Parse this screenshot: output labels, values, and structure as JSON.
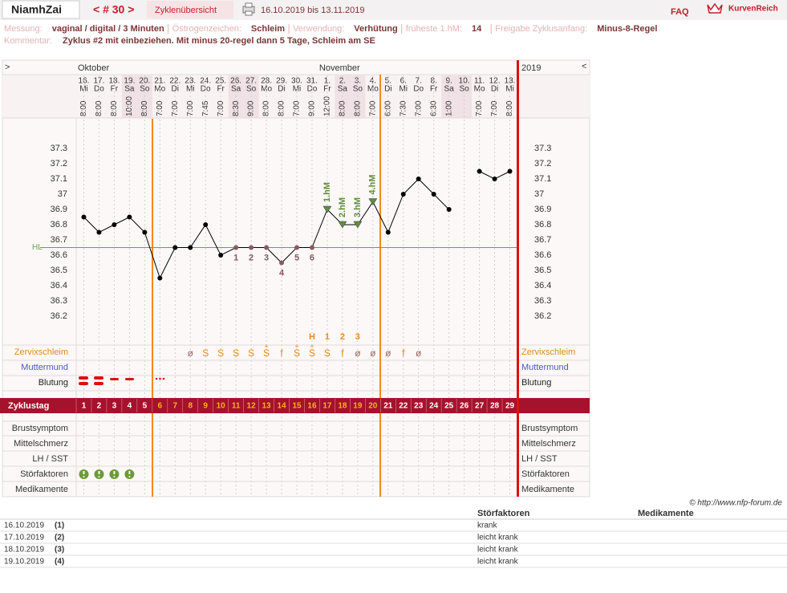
{
  "header": {
    "user": "NiamhZai",
    "cycle_nav": "< # 30 >",
    "overview": "Zyklenübersicht",
    "period": "16.10.2019 bis 13.11.2019",
    "faq": "FAQ",
    "brand": "KurvenReich"
  },
  "info": {
    "fields": [
      {
        "label": "Messung:",
        "value": "vaginal / digital / 3 Minuten"
      },
      {
        "label": "Östrogenzeichen:",
        "value": "Schleim"
      },
      {
        "label": "Verwendung:",
        "value": "Verhütung"
      },
      {
        "label": "früheste 1.hM:",
        "value": "14"
      },
      {
        "label": "Freigabe Zyklusanfang:",
        "value": "Minus-8-Regel"
      }
    ],
    "comment_label": "Kommentar:",
    "comment": "Zyklus #2  mit einbeziehen. Mit minus 20-regel dann 5 Tage,  Schleim am SE"
  },
  "chart_data": {
    "type": "line",
    "nav_left": ">",
    "nav_right": "<",
    "year": "2019",
    "months": [
      "Oktober",
      "November"
    ],
    "categories": [
      "16.",
      "17.",
      "18.",
      "19.",
      "20.",
      "21.",
      "22.",
      "23.",
      "24.",
      "25.",
      "26.",
      "27.",
      "28.",
      "29.",
      "30.",
      "31.",
      "1.",
      "2.",
      "3.",
      "4.",
      "5.",
      "6.",
      "7.",
      "8.",
      "9.",
      "10.",
      "11.",
      "12.",
      "13."
    ],
    "weekdays": [
      "Mi",
      "Do",
      "Fr",
      "Sa",
      "So",
      "Mo",
      "Di",
      "Mi",
      "Do",
      "Fr",
      "Sa",
      "So",
      "Mo",
      "Di",
      "Mi",
      "Do",
      "Fr",
      "Sa",
      "So",
      "Mo",
      "Di",
      "Mi",
      "Do",
      "Fr",
      "Sa",
      "So",
      "Mo",
      "Di",
      "Mi"
    ],
    "times": [
      "8:00",
      "8:00",
      "8:00",
      "10:00",
      "8:00",
      "7:00",
      "7:00",
      "7:00",
      "7:45",
      "7:00",
      "8:30",
      "9:00",
      "8:00",
      "8:00",
      "7:00",
      "9:00",
      "12:00",
      "8:00",
      "8:00",
      "7:00",
      "6:00",
      "7:30",
      "7:00",
      "6:30",
      "1:00",
      null,
      "7:00",
      "7:00",
      "8:00"
    ],
    "values": [
      36.85,
      36.75,
      36.8,
      36.85,
      36.75,
      36.45,
      36.65,
      36.65,
      36.8,
      36.6,
      36.65,
      36.65,
      36.65,
      36.55,
      36.65,
      36.65,
      36.9,
      36.8,
      36.8,
      36.95,
      36.75,
      37.0,
      37.1,
      37.0,
      36.9,
      null,
      37.15,
      37.1,
      37.15
    ],
    "color": "#000000",
    "low_color": "#8a5a5e",
    "high_color": "#5f8f35",
    "low_marks": [
      null,
      null,
      null,
      null,
      null,
      null,
      null,
      null,
      null,
      null,
      1,
      2,
      3,
      4,
      5,
      6,
      null,
      null,
      null,
      null,
      null,
      null,
      null,
      null,
      null,
      null,
      null,
      null,
      null
    ],
    "high_marks": [
      null,
      null,
      null,
      null,
      null,
      null,
      null,
      null,
      null,
      null,
      null,
      null,
      null,
      null,
      null,
      null,
      "1.hM",
      "2.hM",
      "3.hM",
      "4.hM",
      null,
      null,
      null,
      null,
      null,
      null,
      null,
      null,
      null
    ],
    "coverline": {
      "label": "HL",
      "value": 36.65,
      "color": "#6aa04a"
    },
    "ylim": [
      36.0,
      37.5
    ],
    "yticks": [
      36.2,
      36.3,
      36.4,
      36.5,
      36.6,
      36.7,
      36.8,
      36.9,
      37,
      37.1,
      37.2,
      37.3
    ],
    "mucus_count": [
      null,
      null,
      null,
      null,
      null,
      null,
      null,
      null,
      null,
      null,
      null,
      null,
      null,
      null,
      null,
      "H",
      1,
      2,
      3,
      null,
      null,
      null,
      null,
      null,
      null,
      null,
      null,
      null,
      null
    ],
    "mucus": [
      null,
      null,
      null,
      null,
      null,
      null,
      null,
      "ø",
      "S",
      "S",
      "S",
      "S",
      "S",
      "f",
      "S",
      "S",
      "S",
      "f",
      "ø",
      "ø",
      "ø",
      "f",
      "ø",
      null,
      null,
      null,
      null,
      null,
      null
    ],
    "mucus_marks": [
      null,
      null,
      null,
      null,
      null,
      null,
      null,
      null,
      null,
      null,
      null,
      null,
      "+",
      null,
      "+",
      "+",
      null,
      null,
      null,
      null,
      null,
      null,
      null,
      null,
      null,
      null,
      null,
      null,
      null
    ],
    "rows_upper": [
      "Zervixschleim",
      "Muttermund",
      "Blutung"
    ],
    "row_colors_upper": [
      "#e08a1a",
      "#4a58c8",
      "#222222"
    ],
    "cycle_day_label": "Zyklustag",
    "cycle_days": [
      1,
      2,
      3,
      4,
      5,
      6,
      7,
      8,
      9,
      10,
      11,
      12,
      13,
      14,
      15,
      16,
      17,
      18,
      19,
      20,
      21,
      22,
      23,
      24,
      25,
      26,
      27,
      28,
      29
    ],
    "cycle_day_colors": [
      "#ffffff",
      "#ffffff",
      "#ffffff",
      "#ffffff",
      "#ffffff",
      "#f7b21e",
      "#f7b21e",
      "#f7b21e",
      "#f7b21e",
      "#f7b21e",
      "#f7b21e",
      "#f7b21e",
      "#f7b21e",
      "#f7b21e",
      "#f7b21e",
      "#f7b21e",
      "#f7b21e",
      "#f7b21e",
      "#f7b21e",
      "#f7b21e",
      "#ffffff",
      "#ffffff",
      "#ffffff",
      "#ffffff",
      "#ffffff",
      "#ffffff",
      "#ffffff",
      "#ffffff",
      "#ffffff"
    ],
    "rows_lower": [
      "Brustsymptom",
      "Mittelschmerz",
      "LH / SST",
      "Störfaktoren",
      "Medikamente"
    ]
  },
  "footer": {
    "copyright": "© http://www.nfp-forum.de",
    "headers": [
      "Störfaktoren",
      "Medikamente"
    ],
    "rows": [
      [
        "16.10.2019",
        "(1)",
        "krank"
      ],
      [
        "17.10.2019",
        "(2)",
        "leicht krank"
      ],
      [
        "18.10.2019",
        "(3)",
        "leicht krank"
      ],
      [
        "19.10.2019",
        "(4)",
        "leicht krank"
      ]
    ]
  }
}
